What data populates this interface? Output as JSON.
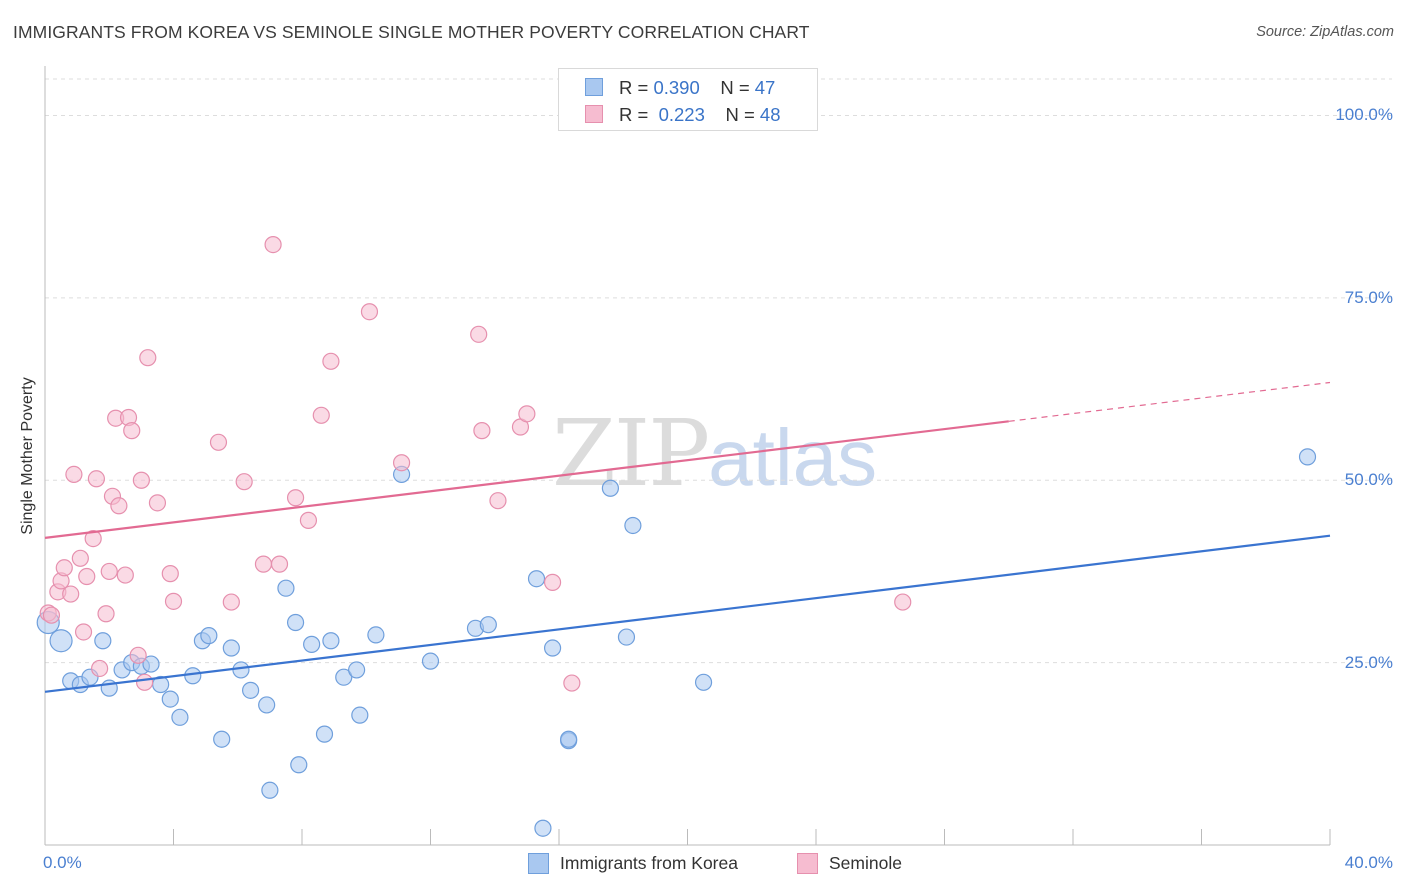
{
  "header": {
    "title": "IMMIGRANTS FROM KOREA VS SEMINOLE SINGLE MOTHER POVERTY CORRELATION CHART",
    "source": "Source: ZipAtlas.com"
  },
  "watermark": {
    "part1": "ZIP",
    "part2": "atlas"
  },
  "legend_top": {
    "rows": [
      {
        "r_label": "R = ",
        "r_value": "0.390",
        "n_label": "N = ",
        "n_value": "47"
      },
      {
        "r_label": "R = ",
        "r_value": "0.223",
        "n_label": "N = ",
        "n_value": "48"
      }
    ]
  },
  "legend_bottom": {
    "items": [
      {
        "label": "Immigrants from Korea"
      },
      {
        "label": "Seminole"
      }
    ]
  },
  "colors": {
    "korea_fill": "#a9c8f0",
    "korea_stroke": "#6f9fdc",
    "korea_line": "#3a74d0",
    "seminole_fill": "#f6bcd0",
    "seminole_stroke": "#e690ae",
    "seminole_line": "#e26a92",
    "tick_text": "#4a7fd0",
    "grid": "#dddddd"
  },
  "chart_data": {
    "type": "scatter",
    "title": "IMMIGRANTS FROM KOREA VS SEMINOLE SINGLE MOTHER POVERTY CORRELATION CHART",
    "xlabel": "",
    "ylabel": "Single Mother Poverty",
    "xlim": [
      0,
      40
    ],
    "ylim": [
      0,
      105
    ],
    "x_tick_labels": [
      "0.0%",
      "40.0%"
    ],
    "y_ticks": [
      25,
      50,
      75,
      100
    ],
    "y_tick_labels": [
      "25.0%",
      "50.0%",
      "75.0%",
      "100.0%"
    ],
    "grid": "horizontal-dashed",
    "legend_position": "top-center and bottom",
    "series": [
      {
        "name": "Immigrants from Korea",
        "R": 0.39,
        "N": 47,
        "trend": {
          "x": [
            0,
            40
          ],
          "y": [
            21.0,
            42.4
          ],
          "dashed_from": null
        },
        "points": [
          [
            0.1,
            30.5
          ],
          [
            0.5,
            28.0
          ],
          [
            0.8,
            22.5
          ],
          [
            1.1,
            22.0
          ],
          [
            1.4,
            23.0
          ],
          [
            1.8,
            28.0
          ],
          [
            2.0,
            21.5
          ],
          [
            2.4,
            24.0
          ],
          [
            2.7,
            25.0
          ],
          [
            3.0,
            24.5
          ],
          [
            3.3,
            24.8
          ],
          [
            3.6,
            22.0
          ],
          [
            3.9,
            20.0
          ],
          [
            4.2,
            17.5
          ],
          [
            4.6,
            23.2
          ],
          [
            4.9,
            28.0
          ],
          [
            5.1,
            28.7
          ],
          [
            5.5,
            14.5
          ],
          [
            5.8,
            27.0
          ],
          [
            6.1,
            24.0
          ],
          [
            6.4,
            21.2
          ],
          [
            6.9,
            19.2
          ],
          [
            7.0,
            7.5
          ],
          [
            7.5,
            35.2
          ],
          [
            7.8,
            30.5
          ],
          [
            7.9,
            11.0
          ],
          [
            8.3,
            27.5
          ],
          [
            8.7,
            15.2
          ],
          [
            8.9,
            28.0
          ],
          [
            9.3,
            23.0
          ],
          [
            9.7,
            24.0
          ],
          [
            9.8,
            17.8
          ],
          [
            10.3,
            28.8
          ],
          [
            11.1,
            50.8
          ],
          [
            12.0,
            25.2
          ],
          [
            13.4,
            29.7
          ],
          [
            13.8,
            30.2
          ],
          [
            15.3,
            36.5
          ],
          [
            15.5,
            2.3
          ],
          [
            15.8,
            27.0
          ],
          [
            16.3,
            14.3
          ],
          [
            16.3,
            14.5
          ],
          [
            17.6,
            48.9
          ],
          [
            18.1,
            28.5
          ],
          [
            18.3,
            43.8
          ],
          [
            20.5,
            22.3
          ],
          [
            39.3,
            53.2
          ]
        ]
      },
      {
        "name": "Seminole",
        "R": 0.223,
        "N": 48,
        "trend": {
          "x": [
            0,
            40
          ],
          "y": [
            42.1,
            63.4
          ],
          "dashed_from": 30.0
        },
        "points": [
          [
            0.1,
            31.8
          ],
          [
            0.2,
            31.5
          ],
          [
            0.4,
            34.7
          ],
          [
            0.5,
            36.2
          ],
          [
            0.6,
            38.0
          ],
          [
            0.8,
            34.4
          ],
          [
            0.9,
            50.8
          ],
          [
            1.1,
            39.3
          ],
          [
            1.2,
            29.2
          ],
          [
            1.3,
            36.8
          ],
          [
            1.5,
            42.0
          ],
          [
            1.6,
            50.2
          ],
          [
            1.7,
            24.2
          ],
          [
            1.9,
            31.7
          ],
          [
            2.0,
            37.5
          ],
          [
            2.1,
            47.8
          ],
          [
            2.2,
            58.5
          ],
          [
            2.3,
            46.5
          ],
          [
            2.5,
            37.0
          ],
          [
            2.6,
            58.6
          ],
          [
            2.7,
            56.8
          ],
          [
            2.9,
            26.0
          ],
          [
            3.0,
            50.0
          ],
          [
            3.1,
            22.3
          ],
          [
            3.2,
            66.8
          ],
          [
            3.5,
            46.9
          ],
          [
            3.9,
            37.2
          ],
          [
            4.0,
            33.4
          ],
          [
            5.4,
            55.2
          ],
          [
            5.8,
            33.3
          ],
          [
            6.2,
            49.8
          ],
          [
            6.8,
            38.5
          ],
          [
            7.1,
            82.3
          ],
          [
            7.3,
            38.5
          ],
          [
            7.8,
            47.6
          ],
          [
            8.2,
            44.5
          ],
          [
            8.6,
            58.9
          ],
          [
            8.9,
            66.3
          ],
          [
            10.1,
            73.1
          ],
          [
            11.1,
            52.4
          ],
          [
            13.5,
            70.0
          ],
          [
            13.6,
            56.8
          ],
          [
            14.1,
            47.2
          ],
          [
            14.8,
            57.3
          ],
          [
            15.0,
            59.1
          ],
          [
            15.8,
            36.0
          ],
          [
            16.4,
            22.2
          ],
          [
            26.7,
            33.3
          ]
        ]
      }
    ]
  }
}
